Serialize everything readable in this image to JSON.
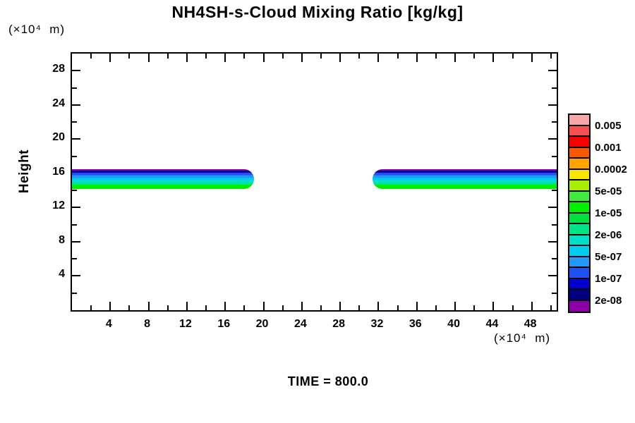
{
  "title": "NH4SH-s-Cloud Mixing Ratio [kg/kg]",
  "footer": {
    "time_label": "TIME = 800.0"
  },
  "y_axis": {
    "label": "Height",
    "unit_label": "(×10⁴  m)",
    "range": [
      0,
      30
    ],
    "major_ticks": [
      4,
      8,
      12,
      16,
      20,
      24,
      28
    ],
    "minor_ticks": [
      2,
      6,
      10,
      14,
      18,
      22,
      26
    ]
  },
  "x_axis": {
    "unit_label": "(×10⁴  m)",
    "range": [
      0,
      50.6
    ],
    "major_ticks": [
      4,
      8,
      12,
      16,
      20,
      24,
      28,
      32,
      36,
      40,
      44,
      48
    ],
    "minor_ticks": [
      2,
      6,
      10,
      14,
      18,
      22,
      26,
      30,
      34,
      38,
      42,
      46,
      50
    ]
  },
  "colorbar": {
    "labels": [
      "0.005",
      "0.001",
      "0.0002",
      "5e-05",
      "1e-05",
      "2e-06",
      "5e-07",
      "1e-07",
      "2e-08"
    ],
    "colors_top_to_bottom": [
      "#f8a8a8",
      "#f85050",
      "#f80000",
      "#f85800",
      "#ffa300",
      "#f8e800",
      "#a8f000",
      "#40e840",
      "#00f000",
      "#00e040",
      "#00e488",
      "#00e0c8",
      "#00ccf0",
      "#2498f8",
      "#2050f0",
      "#0000d0",
      "#000080",
      "#8c00a8"
    ]
  },
  "chart_data": {
    "type": "heatmap",
    "subtype": "filled-contour",
    "title": "NH4SH-s-Cloud Mixing Ratio [kg/kg]",
    "xlabel": "(×10⁴ m)",
    "ylabel": "Height (×10⁴ m)",
    "xlim": [
      0,
      50.6
    ],
    "ylim": [
      0,
      30
    ],
    "time": 800.0,
    "grid": false,
    "legend_position": "right",
    "contour_levels_kg_per_kg": [
      2e-08,
      5e-08,
      1e-07,
      2e-07,
      5e-07,
      1e-06,
      2e-06,
      5e-06,
      1e-05,
      2e-05,
      5e-05,
      0.0001,
      0.0002,
      0.0005,
      0.001,
      0.002,
      0.005
    ],
    "labeled_levels": [
      "0.005",
      "0.001",
      "0.0002",
      "5e-05",
      "1e-05",
      "2e-06",
      "5e-07",
      "1e-07",
      "2e-08"
    ],
    "bands": [
      {
        "name": "left-cloud-band",
        "x_start": 0.0,
        "x_end": 19.0,
        "y_bottom": 14.2,
        "y_top": 16.45,
        "tip": "right"
      },
      {
        "name": "right-cloud-band",
        "x_start": 31.4,
        "x_end": 50.6,
        "y_bottom": 14.2,
        "y_top": 16.45,
        "tip": "left"
      }
    ],
    "band_layers_top_to_bottom": [
      {
        "value": "2e-08",
        "color": "#8c00a8",
        "frac": 0.07
      },
      {
        "value": "5e-08",
        "color": "#0000a0",
        "frac": 0.11
      },
      {
        "value": "1e-07",
        "color": "#2050f0",
        "frac": 0.13
      },
      {
        "value": "5e-07",
        "color": "#2498f8",
        "frac": 0.13
      },
      {
        "value": "1e-06",
        "color": "#00ccf0",
        "frac": 0.12
      },
      {
        "value": "2e-06",
        "color": "#00e0c8",
        "frac": 0.11
      },
      {
        "value": "5e-06",
        "color": "#00e488",
        "frac": 0.11
      },
      {
        "value": "1e-05",
        "color": "#00ee00",
        "frac": 0.22
      }
    ]
  }
}
